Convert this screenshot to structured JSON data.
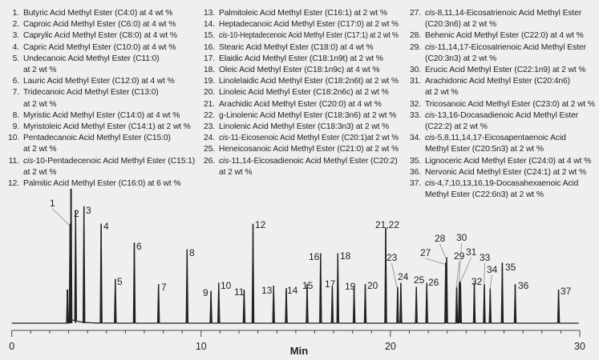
{
  "legend": [
    [
      {
        "num": "1.",
        "italic": "",
        "lines": [
          "Butyric Acid Methyl Ester (C4:0) at 4 wt %"
        ]
      },
      {
        "num": "2.",
        "italic": "",
        "lines": [
          "Caproic Acid Methyl Ester (C6:0) at 4 wt %"
        ]
      },
      {
        "num": "3.",
        "italic": "",
        "lines": [
          "Caprylic Acid Methyl Ester (C8:0) at 4 wt %"
        ]
      },
      {
        "num": "4.",
        "italic": "",
        "lines": [
          "Capric Acid Methyl Ester (C10:0) at 4 wt %"
        ]
      },
      {
        "num": "5.",
        "italic": "",
        "lines": [
          "Undecanoic Acid Methyl Ester (C11:0)",
          "at 2 wt %"
        ]
      },
      {
        "num": "6.",
        "italic": "",
        "lines": [
          "Lauric Acid Methyl Ester (C12:0) at 4 wt %"
        ]
      },
      {
        "num": "7.",
        "italic": "",
        "lines": [
          "Tridecanoic Acid Methyl Ester (C13:0)",
          "at 2 wt %"
        ]
      },
      {
        "num": "8.",
        "italic": "",
        "lines": [
          "Myristic Acid Methyl Ester (C14:0) at 4 wt %"
        ]
      },
      {
        "num": "9.",
        "italic": "",
        "lines": [
          "Myristoleic Acid Methyl Ester (C14:1) at 2 wt %"
        ]
      },
      {
        "num": "10.",
        "italic": "",
        "lines": [
          "Pentadecanoic Acid Methyl Ester (C15:0)",
          "at 2 wt %"
        ]
      },
      {
        "num": "11.",
        "italic": "cis",
        "lines": [
          "-10-Pentadecenoic Acid Methyl Ester (C15:1)",
          "at 2 wt %"
        ]
      },
      {
        "num": "12.",
        "italic": "",
        "lines": [
          "Palmitic Acid Methyl Ester (C16:0) at 6 wt %"
        ]
      }
    ],
    [
      {
        "num": "13.",
        "italic": "",
        "lines": [
          "Palmitoleic Acid Methyl Ester (C16:1) at 2 wt %"
        ]
      },
      {
        "num": "14.",
        "italic": "",
        "lines": [
          "Heptadecanoic Acid Methyl Ester (C17:0) at 2 wt %"
        ]
      },
      {
        "num": "15.",
        "italic": "cis",
        "lines": [
          "-10-Heptadecenoic Acid Methyl Ester (C17:1) at 2 wt %"
        ]
      },
      {
        "num": "16.",
        "italic": "",
        "lines": [
          "Stearic Acid Methyl Ester (C18:0) at 4 wt %"
        ]
      },
      {
        "num": "17.",
        "italic": "",
        "lines": [
          "Elaidic Acid Methyl Ester (C18:1n9t) at 2 wt %"
        ]
      },
      {
        "num": "18.",
        "italic": "",
        "lines": [
          "Oleic Acid Methyl Ester (C18:1n9c) at 4 wt %"
        ]
      },
      {
        "num": "19.",
        "italic": "",
        "lines": [
          "Linolelaidic Acid Methyl Ester (C18:2n6t) at 2 wt %"
        ]
      },
      {
        "num": "20.",
        "italic": "",
        "lines": [
          "Linoleic Acid Methyl Ester (C18:2n6c) at 2 wt %"
        ]
      },
      {
        "num": "21.",
        "italic": "",
        "lines": [
          "Arachidic Acid Methyl Ester (C20:0) at 4 wt %"
        ]
      },
      {
        "num": "22.",
        "italic": "",
        "lines": [
          "g-Linolenic Acid Methyl Ester (C18:3n6) at 2 wt %"
        ]
      },
      {
        "num": "23.",
        "italic": "",
        "lines": [
          "Linolenic Acid Methyl Ester (C18:3n3) at 2 wt %"
        ]
      },
      {
        "num": "24.",
        "italic": "cis",
        "lines": [
          "-11-Eicosenoic Acid Methyl Ester (C20:1)at 2 wt %"
        ]
      },
      {
        "num": "25.",
        "italic": "",
        "lines": [
          "Heneicosanoic Acid Methyl Ester (C21:0) at 2 wt %"
        ]
      },
      {
        "num": "26.",
        "italic": "cis",
        "lines": [
          "-11,14-Eicosadienoic Acid Methyl Ester (C20:2)",
          "at 2 wt %"
        ]
      }
    ],
    [
      {
        "num": "27.",
        "italic": "cis",
        "lines": [
          "-8,11,14-Eicosatrienoic Acid Methyl Ester",
          "(C20:3n6) at 2 wt %"
        ]
      },
      {
        "num": "28.",
        "italic": "",
        "lines": [
          "Behenic Acid Methyl Ester (C22:0) at 4 wt %"
        ]
      },
      {
        "num": "29.",
        "italic": "cis",
        "lines": [
          "-11,14,17-Eicosatrienoic Acid Methyl Ester",
          "(C20:3n3) at 2 wt %"
        ]
      },
      {
        "num": "30.",
        "italic": "",
        "lines": [
          "Erucic Acid Methyl Ester (C22:1n9) at 2 wt %"
        ]
      },
      {
        "num": "31.",
        "italic": "",
        "lines": [
          "Arachidonic Acid Methyl Ester (C20:4n6)",
          "at 2 wt %"
        ]
      },
      {
        "num": "32.",
        "italic": "",
        "lines": [
          "Tricosanoic Acid Methyl Ester (C23:0) at 2 wt %"
        ]
      },
      {
        "num": "33.",
        "italic": "cis",
        "lines": [
          "-13,16-Docasadienoic Acid Methyl Ester",
          "(C22:2) at 2 wt %"
        ]
      },
      {
        "num": "34.",
        "italic": "cis",
        "lines": [
          "-5,8,11,14,17-Eicosapentaenoic Acid",
          "Methyl Ester (C20:5n3) at 2 wt %"
        ]
      },
      {
        "num": "35.",
        "italic": "",
        "lines": [
          "Lignoceric Acid Methyl Ester (C24:0) at 4 wt %"
        ]
      },
      {
        "num": "36.",
        "italic": "",
        "lines": [
          "Nervonic Acid Methyl Ester (C24:1) at 2 wt %"
        ]
      },
      {
        "num": "37.",
        "italic": "cis",
        "lines": [
          "-4,7,10,13,16,19-Docasahexaenoic Acid",
          "Methyl Ester (C22:6n3) at 2 wt %"
        ]
      }
    ]
  ],
  "chart_data": {
    "type": "line",
    "xlabel": "Min",
    "ylabel": "",
    "xlim": [
      0,
      30
    ],
    "x_ticks": [
      "0",
      "10",
      "20",
      "30"
    ],
    "x_minor_tick_step": 1,
    "grid": false,
    "line_color": "#222222",
    "y_units": "relative response (% of largest peak, no y axis shown)",
    "solvent_peaks": [
      {
        "time": 2.94,
        "height": 25
      },
      {
        "time": 3.13,
        "height": 100
      }
    ],
    "peaks": [
      {
        "label": "1",
        "time": 3.08,
        "height": 74
      },
      {
        "label": "2",
        "time": 3.37,
        "height": 84
      },
      {
        "label": "3",
        "time": 3.81,
        "height": 87
      },
      {
        "label": "4",
        "time": 4.72,
        "height": 74
      },
      {
        "label": "5",
        "time": 5.47,
        "height": 33
      },
      {
        "label": "6",
        "time": 6.47,
        "height": 60
      },
      {
        "label": "7",
        "time": 7.75,
        "height": 29
      },
      {
        "label": "8",
        "time": 9.26,
        "height": 55
      },
      {
        "label": "9",
        "time": 10.52,
        "height": 24
      },
      {
        "label": "10",
        "time": 10.93,
        "height": 30
      },
      {
        "label": "11",
        "time": 12.27,
        "height": 25
      },
      {
        "label": "12",
        "time": 12.74,
        "height": 74
      },
      {
        "label": "13",
        "time": 13.83,
        "height": 28
      },
      {
        "label": "14",
        "time": 14.5,
        "height": 26
      },
      {
        "label": "15",
        "time": 15.6,
        "height": 29
      },
      {
        "label": "16",
        "time": 16.31,
        "height": 52
      },
      {
        "label": "17",
        "time": 16.93,
        "height": 27
      },
      {
        "label": "18",
        "time": 17.22,
        "height": 52
      },
      {
        "label": "19",
        "time": 18.08,
        "height": 27
      },
      {
        "label": "20",
        "time": 18.67,
        "height": 29
      },
      {
        "label": "21,22",
        "time": 19.75,
        "height": 71
      },
      {
        "label": "23",
        "time": 20.38,
        "height": 27
      },
      {
        "label": "24",
        "time": 20.55,
        "height": 30
      },
      {
        "label": "25",
        "time": 21.37,
        "height": 27
      },
      {
        "label": "26",
        "time": 21.92,
        "height": 30
      },
      {
        "label": "27",
        "time": 22.92,
        "height": 45
      },
      {
        "label": "28",
        "time": 22.97,
        "height": 49
      },
      {
        "label": "29",
        "time": 23.5,
        "height": 27
      },
      {
        "label": "30",
        "time": 23.64,
        "height": 31
      },
      {
        "label": "31",
        "time": 23.7,
        "height": 31
      },
      {
        "label": "32",
        "time": 24.43,
        "height": 30
      },
      {
        "label": "33",
        "time": 24.96,
        "height": 29
      },
      {
        "label": "34",
        "time": 25.27,
        "height": 26
      },
      {
        "label": "35",
        "time": 25.91,
        "height": 45
      },
      {
        "label": "36",
        "time": 26.59,
        "height": 29
      },
      {
        "label": "37",
        "time": 28.88,
        "height": 25
      }
    ]
  }
}
